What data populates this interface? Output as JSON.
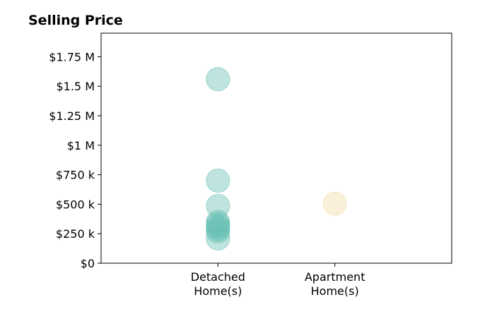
{
  "chart_data": {
    "type": "scatter",
    "title": "Selling Price",
    "xlabel": "",
    "ylabel": "",
    "categories": [
      "Detached\nHome(s)",
      "Apartment\nHome(s)"
    ],
    "xlim": [
      -1,
      2
    ],
    "ylim": [
      0,
      1950000
    ],
    "y_ticks": [
      0,
      250000,
      500000,
      750000,
      1000000,
      1250000,
      1500000,
      1750000
    ],
    "y_tick_labels": [
      "$0",
      "$250 k",
      "$500 k",
      "$750 k",
      "$1 M",
      "$1.25 M",
      "$1.5 M",
      "$1.75 M"
    ],
    "grid": false,
    "legend": "none",
    "series": [
      {
        "category": "Detached\nHome(s)",
        "color": "#66bfb3",
        "y": [
          1560000,
          700000,
          485000,
          350000,
          330000,
          310000,
          290000,
          270000,
          210000
        ]
      },
      {
        "category": "Apartment\nHome(s)",
        "color": "#f4dba8",
        "y": [
          505000
        ]
      }
    ]
  }
}
